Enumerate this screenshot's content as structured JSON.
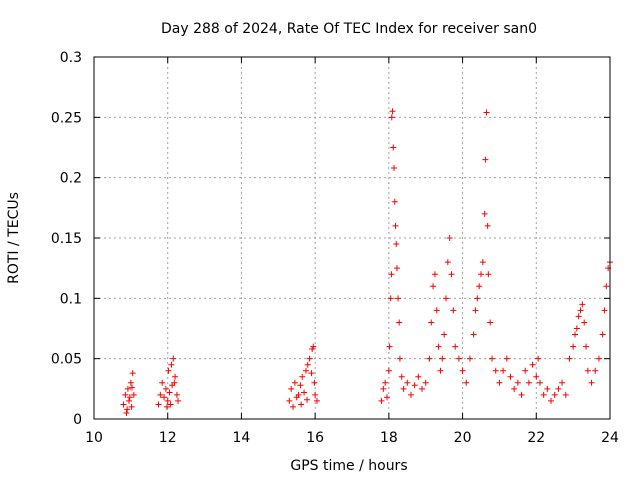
{
  "chart_data": {
    "type": "scatter",
    "title": "Day 288 of 2024, Rate Of TEC Index for receiver san0",
    "xlabel": "GPS time / hours",
    "ylabel": "ROTI / TECUs",
    "xlim": [
      10,
      24
    ],
    "ylim": [
      0,
      0.3
    ],
    "xticks": [
      10,
      12,
      14,
      16,
      18,
      20,
      22,
      24
    ],
    "xtick_labels": [
      "10",
      "12",
      "14",
      "16",
      "18",
      "20",
      "22",
      "24"
    ],
    "yticks": [
      0,
      0.05,
      0.1,
      0.15,
      0.2,
      0.25,
      0.3
    ],
    "ytick_labels": [
      "0",
      "0.05",
      "0.1",
      "0.15",
      "0.2",
      "0.25",
      "0.3"
    ],
    "grid": true,
    "marker": "plus",
    "series": [
      {
        "name": "san0 ROTI",
        "color": "#ff0000",
        "points": [
          [
            10.8,
            0.012
          ],
          [
            10.85,
            0.02
          ],
          [
            10.9,
            0.008
          ],
          [
            10.92,
            0.025
          ],
          [
            10.95,
            0.015
          ],
          [
            11.0,
            0.03
          ],
          [
            11.02,
            0.01
          ],
          [
            11.05,
            0.038
          ],
          [
            11.08,
            0.02
          ],
          [
            10.88,
            0.005
          ],
          [
            10.97,
            0.018
          ],
          [
            11.03,
            0.026
          ],
          [
            11.75,
            0.012
          ],
          [
            11.8,
            0.02
          ],
          [
            11.85,
            0.03
          ],
          [
            11.9,
            0.018
          ],
          [
            11.95,
            0.025
          ],
          [
            12.0,
            0.015
          ],
          [
            12.02,
            0.04
          ],
          [
            12.05,
            0.022
          ],
          [
            12.1,
            0.045
          ],
          [
            12.12,
            0.028
          ],
          [
            12.15,
            0.05
          ],
          [
            12.18,
            0.03
          ],
          [
            12.2,
            0.035
          ],
          [
            12.25,
            0.02
          ],
          [
            12.28,
            0.015
          ],
          [
            11.98,
            0.01
          ],
          [
            12.08,
            0.012
          ],
          [
            15.3,
            0.015
          ],
          [
            15.35,
            0.025
          ],
          [
            15.4,
            0.01
          ],
          [
            15.45,
            0.03
          ],
          [
            15.5,
            0.018
          ],
          [
            15.55,
            0.02
          ],
          [
            15.6,
            0.028
          ],
          [
            15.65,
            0.035
          ],
          [
            15.7,
            0.022
          ],
          [
            15.75,
            0.04
          ],
          [
            15.8,
            0.045
          ],
          [
            15.85,
            0.05
          ],
          [
            15.9,
            0.038
          ],
          [
            15.92,
            0.058
          ],
          [
            15.95,
            0.06
          ],
          [
            15.98,
            0.03
          ],
          [
            16.0,
            0.02
          ],
          [
            16.05,
            0.015
          ],
          [
            15.62,
            0.012
          ],
          [
            15.78,
            0.016
          ],
          [
            17.8,
            0.015
          ],
          [
            17.85,
            0.025
          ],
          [
            17.9,
            0.03
          ],
          [
            17.95,
            0.018
          ],
          [
            18.0,
            0.04
          ],
          [
            18.02,
            0.06
          ],
          [
            18.05,
            0.1
          ],
          [
            18.07,
            0.12
          ],
          [
            18.08,
            0.25
          ],
          [
            18.1,
            0.255
          ],
          [
            18.12,
            0.225
          ],
          [
            18.14,
            0.208
          ],
          [
            18.16,
            0.18
          ],
          [
            18.18,
            0.16
          ],
          [
            18.2,
            0.145
          ],
          [
            18.22,
            0.125
          ],
          [
            18.25,
            0.1
          ],
          [
            18.28,
            0.08
          ],
          [
            18.3,
            0.05
          ],
          [
            18.35,
            0.035
          ],
          [
            18.4,
            0.025
          ],
          [
            18.5,
            0.03
          ],
          [
            18.6,
            0.02
          ],
          [
            18.7,
            0.028
          ],
          [
            18.8,
            0.035
          ],
          [
            18.9,
            0.025
          ],
          [
            19.0,
            0.03
          ],
          [
            19.1,
            0.05
          ],
          [
            19.15,
            0.08
          ],
          [
            19.2,
            0.11
          ],
          [
            19.25,
            0.12
          ],
          [
            19.3,
            0.09
          ],
          [
            19.35,
            0.06
          ],
          [
            19.4,
            0.04
          ],
          [
            19.45,
            0.05
          ],
          [
            19.5,
            0.07
          ],
          [
            19.55,
            0.1
          ],
          [
            19.6,
            0.13
          ],
          [
            19.65,
            0.15
          ],
          [
            19.7,
            0.12
          ],
          [
            19.75,
            0.09
          ],
          [
            19.8,
            0.06
          ],
          [
            19.9,
            0.05
          ],
          [
            20.0,
            0.04
          ],
          [
            20.1,
            0.03
          ],
          [
            20.2,
            0.05
          ],
          [
            20.3,
            0.07
          ],
          [
            20.35,
            0.09
          ],
          [
            20.4,
            0.1
          ],
          [
            20.45,
            0.11
          ],
          [
            20.5,
            0.12
          ],
          [
            20.55,
            0.13
          ],
          [
            20.6,
            0.17
          ],
          [
            20.62,
            0.215
          ],
          [
            20.65,
            0.254
          ],
          [
            20.68,
            0.16
          ],
          [
            20.7,
            0.12
          ],
          [
            20.75,
            0.08
          ],
          [
            20.8,
            0.05
          ],
          [
            20.9,
            0.04
          ],
          [
            21.0,
            0.03
          ],
          [
            21.1,
            0.04
          ],
          [
            21.2,
            0.05
          ],
          [
            21.3,
            0.035
          ],
          [
            21.4,
            0.025
          ],
          [
            21.5,
            0.03
          ],
          [
            21.6,
            0.02
          ],
          [
            21.7,
            0.04
          ],
          [
            21.8,
            0.03
          ],
          [
            21.9,
            0.045
          ],
          [
            22.0,
            0.035
          ],
          [
            22.05,
            0.05
          ],
          [
            22.1,
            0.03
          ],
          [
            22.2,
            0.02
          ],
          [
            22.3,
            0.025
          ],
          [
            22.4,
            0.015
          ],
          [
            22.5,
            0.02
          ],
          [
            22.6,
            0.025
          ],
          [
            22.7,
            0.03
          ],
          [
            22.8,
            0.02
          ],
          [
            22.9,
            0.05
          ],
          [
            23.0,
            0.06
          ],
          [
            23.05,
            0.07
          ],
          [
            23.1,
            0.075
          ],
          [
            23.15,
            0.085
          ],
          [
            23.2,
            0.09
          ],
          [
            23.25,
            0.095
          ],
          [
            23.3,
            0.08
          ],
          [
            23.35,
            0.06
          ],
          [
            23.4,
            0.04
          ],
          [
            23.5,
            0.03
          ],
          [
            23.6,
            0.04
          ],
          [
            23.7,
            0.05
          ],
          [
            23.8,
            0.07
          ],
          [
            23.85,
            0.09
          ],
          [
            23.9,
            0.11
          ],
          [
            23.95,
            0.125
          ],
          [
            24.0,
            0.13
          ]
        ]
      }
    ]
  }
}
